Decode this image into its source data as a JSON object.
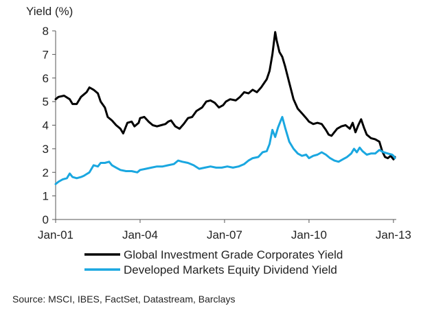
{
  "chart_data": {
    "type": "line",
    "title": "",
    "ylabel": "Yield (%)",
    "xlabel": "",
    "ylim": [
      0,
      8
    ],
    "xlim": [
      2001.0,
      2013.1
    ],
    "yticks": [
      0,
      1,
      2,
      3,
      4,
      5,
      6,
      7,
      8
    ],
    "xticks": [
      {
        "label": "Jan-01",
        "value": 2001.0
      },
      {
        "label": "Jan-04",
        "value": 2004.0
      },
      {
        "label": "Jan-07",
        "value": 2007.0
      },
      {
        "label": "Jan-10",
        "value": 2010.0
      },
      {
        "label": "Jan-13",
        "value": 2013.0
      }
    ],
    "grid": false,
    "legend": "bottom",
    "series": [
      {
        "name": "Global Investment Grade Corporates Yield",
        "color": "#000000",
        "points": [
          [
            2001.0,
            5.1
          ],
          [
            2001.1,
            5.2
          ],
          [
            2001.3,
            5.25
          ],
          [
            2001.5,
            5.1
          ],
          [
            2001.6,
            4.9
          ],
          [
            2001.75,
            4.9
          ],
          [
            2001.9,
            5.2
          ],
          [
            2002.0,
            5.3
          ],
          [
            2002.1,
            5.4
          ],
          [
            2002.2,
            5.6
          ],
          [
            2002.35,
            5.5
          ],
          [
            2002.5,
            5.35
          ],
          [
            2002.6,
            5.0
          ],
          [
            2002.75,
            4.75
          ],
          [
            2002.85,
            4.35
          ],
          [
            2003.0,
            4.2
          ],
          [
            2003.15,
            4.0
          ],
          [
            2003.3,
            3.85
          ],
          [
            2003.4,
            3.65
          ],
          [
            2003.55,
            4.1
          ],
          [
            2003.7,
            4.15
          ],
          [
            2003.8,
            3.95
          ],
          [
            2003.95,
            4.1
          ],
          [
            2004.0,
            4.3
          ],
          [
            2004.15,
            4.35
          ],
          [
            2004.3,
            4.15
          ],
          [
            2004.45,
            4.0
          ],
          [
            2004.6,
            3.95
          ],
          [
            2004.75,
            4.0
          ],
          [
            2004.9,
            4.05
          ],
          [
            2005.0,
            4.15
          ],
          [
            2005.1,
            4.2
          ],
          [
            2005.25,
            3.95
          ],
          [
            2005.4,
            3.85
          ],
          [
            2005.55,
            4.05
          ],
          [
            2005.7,
            4.3
          ],
          [
            2005.85,
            4.35
          ],
          [
            2006.0,
            4.6
          ],
          [
            2006.2,
            4.75
          ],
          [
            2006.35,
            5.0
          ],
          [
            2006.5,
            5.05
          ],
          [
            2006.65,
            4.95
          ],
          [
            2006.8,
            4.75
          ],
          [
            2006.95,
            4.85
          ],
          [
            2007.05,
            5.0
          ],
          [
            2007.2,
            5.1
          ],
          [
            2007.4,
            5.05
          ],
          [
            2007.55,
            5.2
          ],
          [
            2007.7,
            5.4
          ],
          [
            2007.85,
            5.35
          ],
          [
            2008.0,
            5.5
          ],
          [
            2008.15,
            5.4
          ],
          [
            2008.3,
            5.6
          ],
          [
            2008.5,
            5.95
          ],
          [
            2008.6,
            6.3
          ],
          [
            2008.7,
            7.0
          ],
          [
            2008.8,
            7.95
          ],
          [
            2008.85,
            7.6
          ],
          [
            2008.95,
            7.1
          ],
          [
            2009.05,
            6.9
          ],
          [
            2009.15,
            6.5
          ],
          [
            2009.3,
            5.8
          ],
          [
            2009.45,
            5.1
          ],
          [
            2009.6,
            4.7
          ],
          [
            2009.75,
            4.5
          ],
          [
            2009.9,
            4.3
          ],
          [
            2010.0,
            4.15
          ],
          [
            2010.15,
            4.05
          ],
          [
            2010.3,
            4.1
          ],
          [
            2010.45,
            4.05
          ],
          [
            2010.6,
            3.8
          ],
          [
            2010.7,
            3.6
          ],
          [
            2010.8,
            3.55
          ],
          [
            2010.9,
            3.7
          ],
          [
            2011.0,
            3.85
          ],
          [
            2011.15,
            3.95
          ],
          [
            2011.3,
            4.0
          ],
          [
            2011.45,
            3.85
          ],
          [
            2011.55,
            4.1
          ],
          [
            2011.65,
            3.7
          ],
          [
            2011.75,
            4.0
          ],
          [
            2011.85,
            4.25
          ],
          [
            2011.95,
            3.9
          ],
          [
            2012.05,
            3.6
          ],
          [
            2012.2,
            3.45
          ],
          [
            2012.35,
            3.4
          ],
          [
            2012.5,
            3.3
          ],
          [
            2012.6,
            2.9
          ],
          [
            2012.7,
            2.65
          ],
          [
            2012.8,
            2.6
          ],
          [
            2012.9,
            2.7
          ],
          [
            2013.0,
            2.55
          ],
          [
            2013.05,
            2.65
          ]
        ]
      },
      {
        "name": "Developed Markets Equity Dividend Yield",
        "color": "#1aa7e0",
        "points": [
          [
            2001.0,
            1.5
          ],
          [
            2001.1,
            1.6
          ],
          [
            2001.25,
            1.7
          ],
          [
            2001.4,
            1.75
          ],
          [
            2001.5,
            1.95
          ],
          [
            2001.6,
            1.8
          ],
          [
            2001.75,
            1.75
          ],
          [
            2001.9,
            1.8
          ],
          [
            2002.0,
            1.85
          ],
          [
            2002.2,
            2.0
          ],
          [
            2002.35,
            2.3
          ],
          [
            2002.5,
            2.25
          ],
          [
            2002.6,
            2.4
          ],
          [
            2002.75,
            2.4
          ],
          [
            2002.9,
            2.45
          ],
          [
            2003.0,
            2.3
          ],
          [
            2003.15,
            2.2
          ],
          [
            2003.3,
            2.1
          ],
          [
            2003.5,
            2.05
          ],
          [
            2003.7,
            2.05
          ],
          [
            2003.9,
            2.0
          ],
          [
            2004.0,
            2.1
          ],
          [
            2004.2,
            2.15
          ],
          [
            2004.4,
            2.2
          ],
          [
            2004.6,
            2.25
          ],
          [
            2004.8,
            2.25
          ],
          [
            2005.0,
            2.3
          ],
          [
            2005.2,
            2.35
          ],
          [
            2005.35,
            2.5
          ],
          [
            2005.5,
            2.45
          ],
          [
            2005.7,
            2.4
          ],
          [
            2005.9,
            2.3
          ],
          [
            2006.1,
            2.15
          ],
          [
            2006.3,
            2.2
          ],
          [
            2006.5,
            2.25
          ],
          [
            2006.7,
            2.2
          ],
          [
            2006.9,
            2.2
          ],
          [
            2007.1,
            2.25
          ],
          [
            2007.3,
            2.2
          ],
          [
            2007.5,
            2.25
          ],
          [
            2007.7,
            2.35
          ],
          [
            2007.85,
            2.5
          ],
          [
            2008.0,
            2.6
          ],
          [
            2008.2,
            2.65
          ],
          [
            2008.35,
            2.85
          ],
          [
            2008.5,
            2.9
          ],
          [
            2008.6,
            3.2
          ],
          [
            2008.7,
            3.8
          ],
          [
            2008.8,
            3.5
          ],
          [
            2008.9,
            3.9
          ],
          [
            2009.0,
            4.2
          ],
          [
            2009.05,
            4.35
          ],
          [
            2009.15,
            3.9
          ],
          [
            2009.3,
            3.3
          ],
          [
            2009.45,
            3.0
          ],
          [
            2009.6,
            2.8
          ],
          [
            2009.75,
            2.7
          ],
          [
            2009.9,
            2.75
          ],
          [
            2010.0,
            2.6
          ],
          [
            2010.15,
            2.7
          ],
          [
            2010.3,
            2.75
          ],
          [
            2010.45,
            2.85
          ],
          [
            2010.6,
            2.75
          ],
          [
            2010.75,
            2.6
          ],
          [
            2010.9,
            2.5
          ],
          [
            2011.05,
            2.45
          ],
          [
            2011.2,
            2.55
          ],
          [
            2011.35,
            2.65
          ],
          [
            2011.5,
            2.8
          ],
          [
            2011.6,
            3.0
          ],
          [
            2011.7,
            2.85
          ],
          [
            2011.8,
            3.05
          ],
          [
            2011.9,
            2.9
          ],
          [
            2012.05,
            2.75
          ],
          [
            2012.2,
            2.8
          ],
          [
            2012.35,
            2.8
          ],
          [
            2012.5,
            2.95
          ],
          [
            2012.65,
            2.85
          ],
          [
            2012.8,
            2.8
          ],
          [
            2012.95,
            2.75
          ],
          [
            2013.0,
            2.7
          ],
          [
            2013.05,
            2.6
          ]
        ]
      }
    ]
  },
  "source": "Source: MSCI, IBES, FactSet, Datastream, Barclays"
}
